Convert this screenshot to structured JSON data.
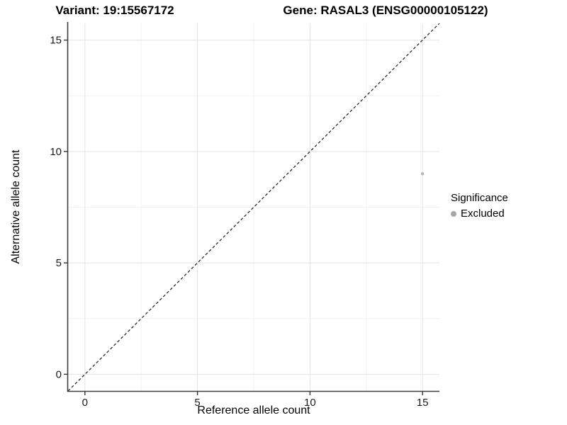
{
  "chart_data": {
    "type": "scatter",
    "title_left": "Variant: 19:15567172",
    "title_right": "Gene: RASAL3 (ENSG00000105122)",
    "xlabel": "Reference allele count",
    "ylabel": "Alternative allele count",
    "xlim": [
      -0.75,
      15.75
    ],
    "ylim": [
      -0.75,
      15.75
    ],
    "xticks": [
      0,
      5,
      10,
      15
    ],
    "yticks": [
      0,
      5,
      10,
      15
    ],
    "x_minor": [
      2.5,
      7.5,
      12.5
    ],
    "y_minor": [
      2.5,
      7.5,
      12.5
    ],
    "grid": "major and minor gridlines on white background, left/bottom axis lines only",
    "reference_line": {
      "slope": 1,
      "intercept": 0,
      "style": "dashed",
      "color": "#1a1a1a"
    },
    "series": [
      {
        "name": "Excluded",
        "color": "#b5b5b5",
        "points": [
          {
            "x": 15,
            "y": 9
          }
        ]
      }
    ],
    "legend": {
      "title": "Significance",
      "position": "right",
      "entries": [
        {
          "label": "Excluded",
          "swatch_color": "#a6a6a6"
        }
      ]
    },
    "colors": {
      "background": "#ffffff",
      "grid_major": "#e3e3e3",
      "grid_minor": "#f2f2f2",
      "axis_line": "#3d3d3d",
      "tick_mark": "#333333",
      "text": "#1a1a1a"
    }
  }
}
